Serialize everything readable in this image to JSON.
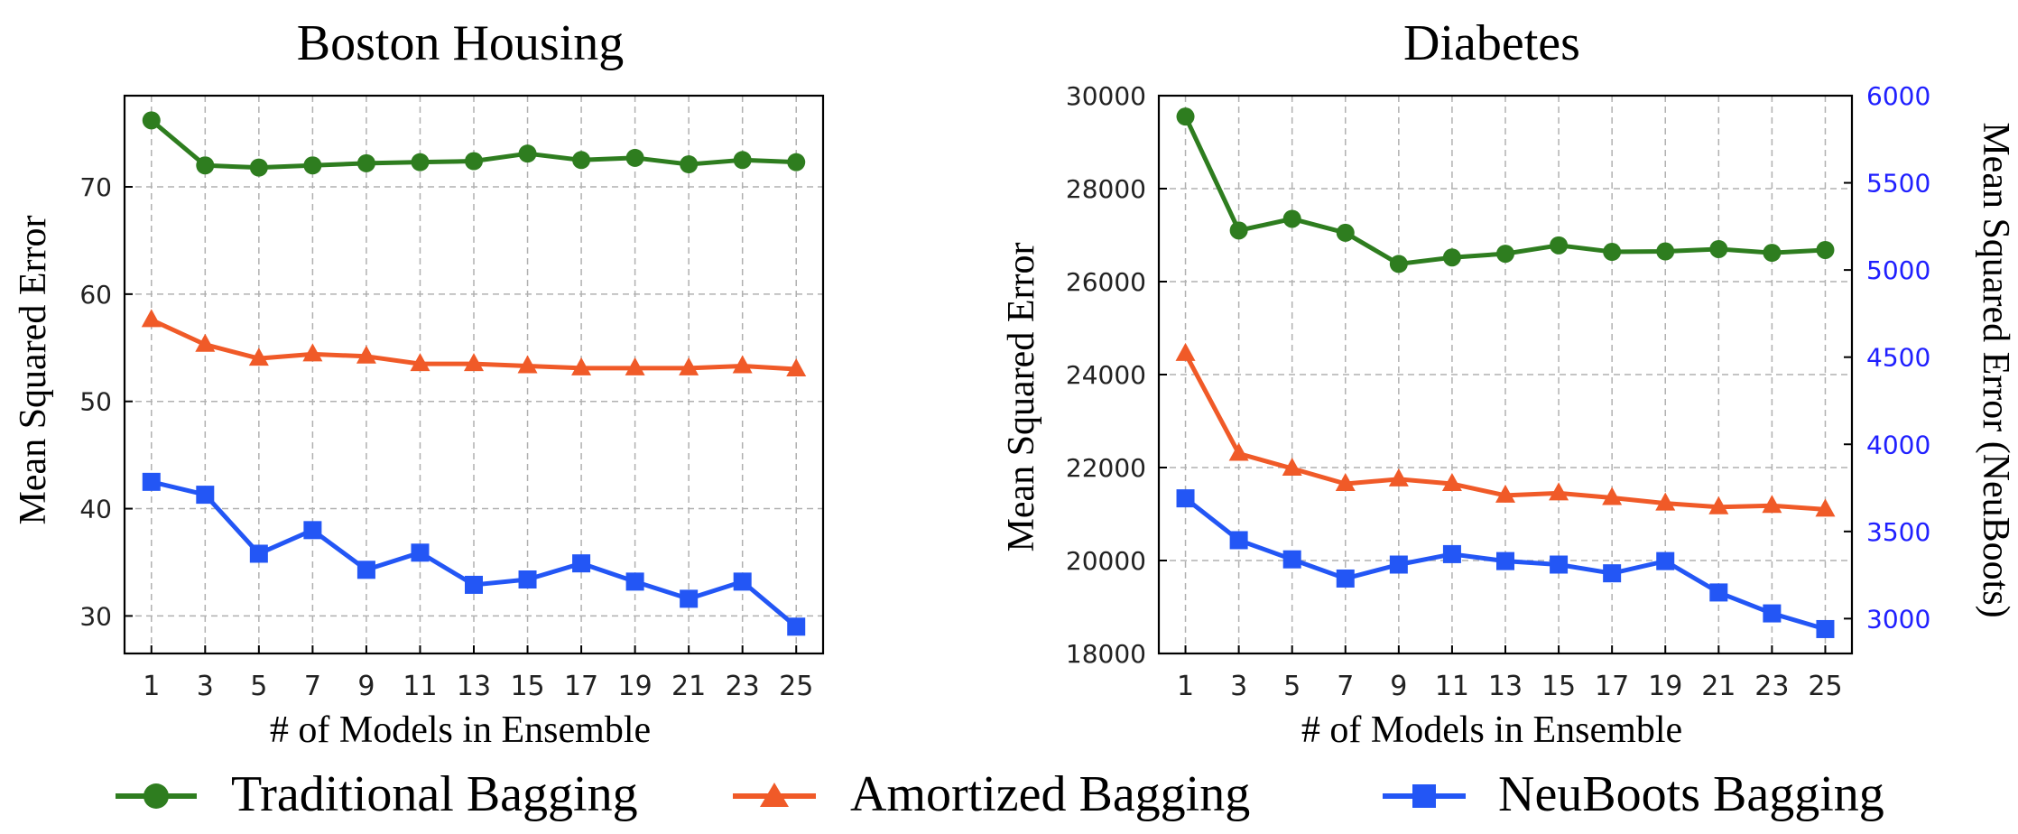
{
  "chart_data": [
    {
      "type": "line",
      "title": "Boston Housing",
      "xlabel": "# of Models in Ensemble",
      "ylabel": "Mean Squared Error",
      "x": [
        1,
        3,
        5,
        7,
        9,
        11,
        13,
        15,
        17,
        19,
        21,
        23,
        25
      ],
      "xlim": [
        0,
        26
      ],
      "ylim": [
        26.5,
        78.5
      ],
      "yticks": [
        30,
        40,
        50,
        60,
        70
      ],
      "grid": true,
      "series": [
        {
          "name": "Traditional Bagging",
          "axis": "left",
          "color": "#2e7d1f",
          "marker": "circle",
          "values": [
            76.2,
            72.0,
            71.8,
            72.0,
            72.2,
            72.3,
            72.4,
            73.1,
            72.5,
            72.7,
            72.1,
            72.5,
            72.3
          ]
        },
        {
          "name": "Amortized Bagging",
          "axis": "left",
          "color": "#f05a28",
          "marker": "triangle",
          "values": [
            57.6,
            55.3,
            54.0,
            54.4,
            54.2,
            53.5,
            53.5,
            53.3,
            53.1,
            53.1,
            53.1,
            53.3,
            53.0
          ]
        },
        {
          "name": "NeuBoots Bagging",
          "axis": "left",
          "color": "#2356f5",
          "marker": "square",
          "values": [
            42.5,
            41.3,
            35.8,
            38.0,
            34.3,
            35.9,
            32.9,
            33.4,
            34.9,
            33.2,
            31.6,
            33.2,
            29.0
          ]
        }
      ]
    },
    {
      "type": "line",
      "title": "Diabetes",
      "xlabel": "# of Models in Ensemble",
      "ylabel": "Mean Squared Error",
      "ylabel_right": "Mean Squared Error (NeuBoots)",
      "x": [
        1,
        3,
        5,
        7,
        9,
        11,
        13,
        15,
        17,
        19,
        21,
        23,
        25
      ],
      "xlim": [
        0,
        26
      ],
      "ylim": [
        18000,
        30000
      ],
      "yticks": [
        18000,
        20000,
        22000,
        24000,
        26000,
        28000,
        30000
      ],
      "ylim_right": [
        2800,
        6000
      ],
      "yticks_right": [
        3000,
        3500,
        4000,
        4500,
        5000,
        5500,
        6000
      ],
      "right_axis_color": "#2020ff",
      "grid": true,
      "series": [
        {
          "name": "Traditional Bagging",
          "axis": "left",
          "color": "#2e7d1f",
          "marker": "circle",
          "values": [
            29550,
            27100,
            27350,
            27050,
            26380,
            26520,
            26600,
            26780,
            26640,
            26650,
            26700,
            26620,
            26680
          ]
        },
        {
          "name": "Amortized Bagging",
          "axis": "left",
          "color": "#f05a28",
          "marker": "triangle",
          "values": [
            24450,
            22300,
            21980,
            21650,
            21750,
            21650,
            21400,
            21450,
            21350,
            21230,
            21150,
            21180,
            21100
          ]
        },
        {
          "name": "NeuBoots Bagging",
          "axis": "right",
          "color": "#2356f5",
          "marker": "square",
          "values": [
            3690,
            3450,
            3340,
            3230,
            3310,
            3370,
            3330,
            3310,
            3260,
            3330,
            3150,
            3030,
            2940
          ]
        }
      ]
    }
  ],
  "legend": {
    "position": "bottom-center",
    "items": [
      {
        "label": "Traditional Bagging",
        "color": "#2e7d1f",
        "marker": "circle"
      },
      {
        "label": "Amortized Bagging",
        "color": "#f05a28",
        "marker": "triangle"
      },
      {
        "label": "NeuBoots Bagging",
        "color": "#2356f5",
        "marker": "square"
      }
    ]
  }
}
